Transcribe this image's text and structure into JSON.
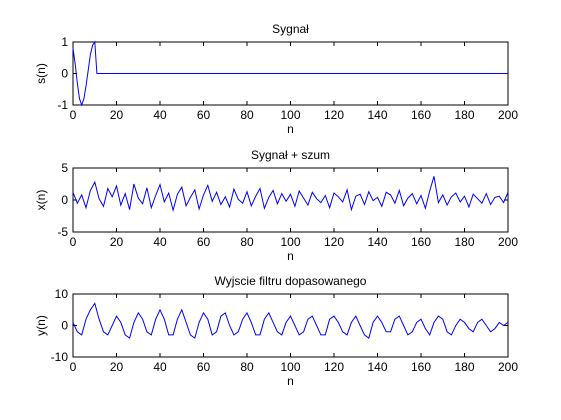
{
  "chart_data": [
    {
      "type": "line",
      "title": "Sygnał",
      "xlabel": "n",
      "ylabel": "s(n)",
      "color": "#0000ff",
      "x": [
        0,
        1,
        2,
        3,
        4,
        5,
        6,
        7,
        8,
        9,
        10,
        11,
        200
      ],
      "values": [
        0.8,
        0.3,
        -0.3,
        -0.8,
        -1,
        -0.8,
        -0.4,
        0.1,
        0.6,
        0.9,
        1,
        0,
        0
      ],
      "xlim": [
        0,
        200
      ],
      "xticks": [
        0,
        20,
        40,
        60,
        80,
        100,
        120,
        140,
        160,
        180,
        200
      ],
      "ylim": [
        -1,
        1
      ],
      "yticks": [
        -1,
        0,
        1
      ]
    },
    {
      "type": "line",
      "title": "Sygnał + szum",
      "xlabel": "n",
      "ylabel": "x(n)",
      "color": "#0000ff",
      "x": [
        0,
        2,
        4,
        6,
        8,
        10,
        12,
        14,
        16,
        18,
        20,
        22,
        24,
        26,
        28,
        30,
        32,
        34,
        36,
        38,
        40,
        42,
        44,
        46,
        48,
        50,
        52,
        54,
        56,
        58,
        60,
        62,
        64,
        66,
        68,
        70,
        72,
        74,
        76,
        78,
        80,
        82,
        84,
        86,
        88,
        90,
        92,
        94,
        96,
        98,
        100,
        102,
        104,
        106,
        108,
        110,
        112,
        114,
        116,
        118,
        120,
        122,
        124,
        126,
        128,
        130,
        132,
        134,
        136,
        138,
        140,
        142,
        144,
        146,
        148,
        150,
        152,
        154,
        156,
        158,
        160,
        162,
        164,
        166,
        168,
        170,
        172,
        174,
        176,
        178,
        180,
        182,
        184,
        186,
        188,
        190,
        192,
        194,
        196,
        198,
        200
      ],
      "values": [
        1.2,
        -0.5,
        0.8,
        -1.2,
        1.5,
        2.8,
        0.2,
        -1.0,
        1.8,
        0.5,
        2.2,
        -0.8,
        1.0,
        -1.5,
        2.5,
        0.3,
        -0.6,
        1.9,
        -1.2,
        0.7,
        2.4,
        -0.3,
        1.1,
        -1.6,
        0.9,
        2.0,
        -0.9,
        0.4,
        1.6,
        -1.4,
        0.8,
        2.3,
        -0.2,
        1.2,
        -0.7,
        0.5,
        -1.1,
        1.7,
        0.1,
        -0.5,
        1.3,
        -0.9,
        0.6,
        1.8,
        -1.3,
        0.4,
        1.5,
        -0.6,
        1.0,
        -0.2,
        0.9,
        -1.0,
        1.4,
        0.3,
        -0.8,
        1.2,
        0.2,
        -0.4,
        0.7,
        -1.2,
        1.1,
        0.5,
        -0.3,
        1.6,
        -1.5,
        0.6,
        0.9,
        -0.7,
        1.3,
        -0.1,
        0.4,
        -1.0,
        1.2,
        0.8,
        -0.5,
        1.5,
        -0.9,
        0.3,
        1.0,
        -0.6,
        0.7,
        -1.3,
        1.4,
        3.7,
        -0.4,
        0.8,
        -0.8,
        0.5,
        1.1,
        -0.3,
        0.6,
        -1.1,
        0.9,
        0.2,
        -0.5,
        1.0,
        -0.7,
        0.4,
        0.6,
        -0.4,
        1.2
      ],
      "xlim": [
        0,
        200
      ],
      "xticks": [
        0,
        20,
        40,
        60,
        80,
        100,
        120,
        140,
        160,
        180,
        200
      ],
      "ylim": [
        -5,
        5
      ],
      "yticks": [
        -5,
        0,
        5
      ]
    },
    {
      "type": "line",
      "title": "Wyjscie filtru dopasowanego",
      "xlabel": "n",
      "ylabel": "y(n)",
      "color": "#0000ff",
      "x": [
        0,
        2,
        4,
        6,
        8,
        10,
        12,
        14,
        16,
        18,
        20,
        22,
        24,
        26,
        28,
        30,
        32,
        34,
        36,
        38,
        40,
        42,
        44,
        46,
        48,
        50,
        52,
        54,
        56,
        58,
        60,
        62,
        64,
        66,
        68,
        70,
        72,
        74,
        76,
        78,
        80,
        82,
        84,
        86,
        88,
        90,
        92,
        94,
        96,
        98,
        100,
        102,
        104,
        106,
        108,
        110,
        112,
        114,
        116,
        118,
        120,
        122,
        124,
        126,
        128,
        130,
        132,
        134,
        136,
        138,
        140,
        142,
        144,
        146,
        148,
        150,
        152,
        154,
        156,
        158,
        160,
        162,
        164,
        166,
        168,
        170,
        172,
        174,
        176,
        178,
        180,
        182,
        184,
        186,
        188,
        190,
        192,
        194,
        196,
        198,
        200
      ],
      "values": [
        1,
        -2,
        -3,
        2,
        5,
        7,
        2,
        -2,
        -3,
        0,
        3,
        1,
        -3,
        -4,
        1,
        4,
        2,
        -2,
        -3,
        2,
        5,
        2,
        -3,
        -3,
        2,
        5,
        1,
        -3,
        -4,
        1,
        4,
        2,
        -3,
        -2,
        3,
        4,
        0,
        -3,
        -2,
        2,
        4,
        1,
        -3,
        -3,
        2,
        4,
        1,
        -2,
        -3,
        1,
        3,
        0,
        -3,
        -2,
        2,
        3,
        0,
        -3,
        -3,
        2,
        3,
        1,
        -2,
        -3,
        1,
        3,
        0,
        -3,
        -4,
        1,
        3,
        1,
        -2,
        -2,
        2,
        3,
        0,
        -3,
        -2,
        1,
        2,
        -1,
        -3,
        1,
        3,
        2,
        -2,
        -3,
        0,
        2,
        1,
        -1,
        -2,
        1,
        2,
        0,
        -2,
        -1,
        1,
        0,
        1
      ],
      "xlim": [
        0,
        200
      ],
      "xticks": [
        0,
        20,
        40,
        60,
        80,
        100,
        120,
        140,
        160,
        180,
        200
      ],
      "ylim": [
        -10,
        10
      ],
      "yticks": [
        -10,
        0,
        10
      ]
    }
  ]
}
